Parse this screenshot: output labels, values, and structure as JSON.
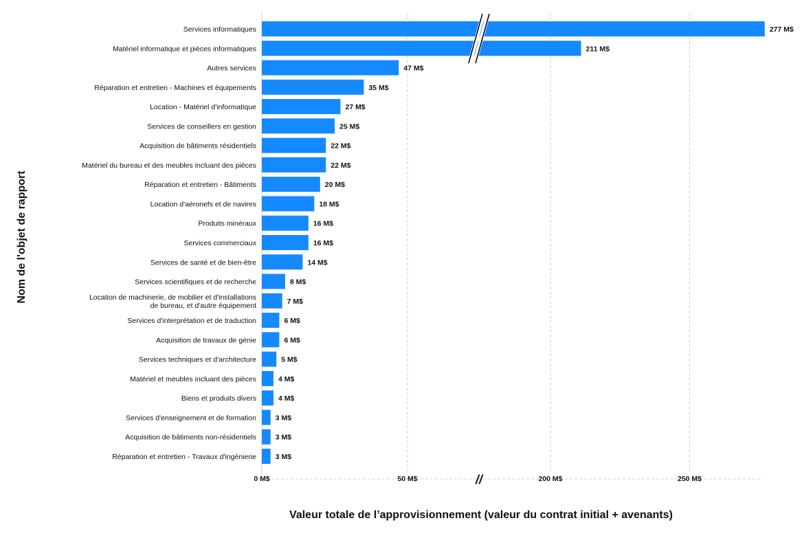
{
  "chart_data": {
    "type": "bar",
    "orientation": "horizontal",
    "xlabel": "Valeur totale de l’approvisionnement (valeur du contrat initial + avenants)",
    "ylabel": "Nom de l'objet de rapport",
    "axis_break": [
      75,
      175
    ],
    "xlim": [
      0,
      275
    ],
    "xticks": [
      {
        "value": 0,
        "label": "0 M$"
      },
      {
        "value": 50,
        "label": "50 M$"
      },
      {
        "value": 200,
        "label": "200 M$"
      },
      {
        "value": 250,
        "label": "250 M$"
      }
    ],
    "break_symbol": "//",
    "grid": true,
    "bar_color": "#1589FF",
    "categories": [
      "Services informatiques",
      "Matériel informatique et pièces informatiques",
      "Autres services",
      "Réparation et entretien - Machines et équipements",
      "Location - Matériel d'informatique",
      "Services de conseillers en gestion",
      "Acquisition de bâtiments résidentiels",
      "Matériel du bureau et des meubles incluant des pièces",
      "Réparation et entretien - Bâtiments",
      "Location d'aéronefs et de navires",
      "Produits minéraux",
      "Services commerciaux",
      "Services de santé et de bien-être",
      "Services scientifiques et de recherche",
      "Location de machinerie, de mobilier et d'installations\nde bureau, et d'autre équipement",
      "Services d'interprétation et de traduction",
      "Acquisition de travaux de génie",
      "Services techniques et d'architecture",
      "Matériel et meubles incluant des pièces",
      "Biens et produits divers",
      "Services d'enseignement et de formation",
      "Acquisition de bâtiments non-résidentiels",
      "Réparation et entretien - Travaux d'ingénierie"
    ],
    "values": [
      277,
      211,
      47,
      35,
      27,
      25,
      22,
      22,
      20,
      18,
      16,
      16,
      14,
      8,
      7,
      6,
      6,
      5,
      4,
      4,
      3,
      3,
      3
    ],
    "data_labels": [
      "277 M$",
      "211 M$",
      "47 M$",
      "35 M$",
      "27 M$",
      "25 M$",
      "22 M$",
      "22 M$",
      "20 M$",
      "18 M$",
      "16 M$",
      "16 M$",
      "14 M$",
      "8 M$",
      "7 M$",
      "6 M$",
      "6 M$",
      "5 M$",
      "4 M$",
      "4 M$",
      "3 M$",
      "3 M$",
      "3 M$"
    ]
  }
}
